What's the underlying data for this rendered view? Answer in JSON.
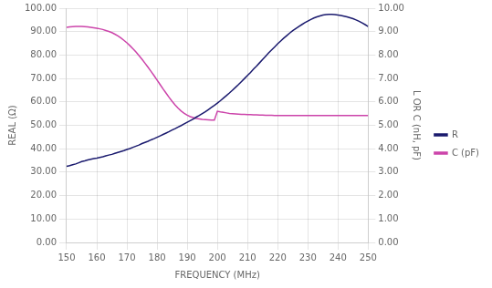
{
  "chart_data": {
    "type": "line",
    "xlabel": "FREQUENCY (MHz)",
    "ylabel": "REAL (Ω)",
    "y2label": "L OR C (nH, pF)",
    "x": [
      150,
      151,
      152,
      153,
      154,
      155,
      156,
      157,
      158,
      159,
      160,
      161,
      162,
      163,
      164,
      165,
      166,
      167,
      168,
      169,
      170,
      171,
      172,
      173,
      174,
      175,
      176,
      177,
      178,
      179,
      180,
      181,
      182,
      183,
      184,
      185,
      186,
      187,
      188,
      189,
      190,
      191,
      192,
      193,
      194,
      195,
      196,
      197,
      198,
      199,
      200,
      201,
      202,
      203,
      204,
      205,
      206,
      207,
      208,
      209,
      210,
      211,
      212,
      213,
      214,
      215,
      216,
      217,
      218,
      219,
      220,
      221,
      222,
      223,
      224,
      225,
      226,
      227,
      228,
      229,
      230,
      231,
      232,
      233,
      234,
      235,
      236,
      237,
      238,
      239,
      240,
      241,
      242,
      243,
      244,
      245,
      246,
      247,
      248,
      249,
      250
    ],
    "series": [
      {
        "name": "R",
        "color": "#1a1a6e",
        "axis": "y",
        "values": [
          32.5,
          32.8,
          33.2,
          33.5,
          34.0,
          34.5,
          34.8,
          35.2,
          35.5,
          35.8,
          36.0,
          36.3,
          36.6,
          37.0,
          37.3,
          37.6,
          38.0,
          38.4,
          38.8,
          39.2,
          39.7,
          40.1,
          40.6,
          41.1,
          41.6,
          42.2,
          42.7,
          43.2,
          43.8,
          44.3,
          44.9,
          45.5,
          46.1,
          46.7,
          47.3,
          48.0,
          48.6,
          49.3,
          49.9,
          50.6,
          51.3,
          52.0,
          52.7,
          53.5,
          54.2,
          55.0,
          55.8,
          56.7,
          57.6,
          58.5,
          59.5,
          60.5,
          61.6,
          62.7,
          63.8,
          65.0,
          66.2,
          67.4,
          68.7,
          70.0,
          71.3,
          72.6,
          74.0,
          75.3,
          76.7,
          78.1,
          79.5,
          80.9,
          82.2,
          83.5,
          84.8,
          86.0,
          87.2,
          88.3,
          89.4,
          90.4,
          91.3,
          92.2,
          93.0,
          93.8,
          94.5,
          95.2,
          95.8,
          96.3,
          96.7,
          97.1,
          97.3,
          97.4,
          97.4,
          97.3,
          97.1,
          96.9,
          96.6,
          96.3,
          95.9,
          95.5,
          95.0,
          94.4,
          93.7,
          93.0,
          92.2
        ]
      },
      {
        "name": "C (pF)",
        "color": "#cc44aa",
        "axis": "y2",
        "values": [
          9.18,
          9.2,
          9.21,
          9.22,
          9.22,
          9.22,
          9.21,
          9.2,
          9.18,
          9.16,
          9.14,
          9.12,
          9.09,
          9.05,
          9.01,
          8.96,
          8.89,
          8.82,
          8.73,
          8.63,
          8.52,
          8.4,
          8.27,
          8.13,
          7.98,
          7.82,
          7.65,
          7.48,
          7.3,
          7.12,
          6.93,
          6.74,
          6.55,
          6.37,
          6.19,
          6.02,
          5.87,
          5.73,
          5.61,
          5.51,
          5.43,
          5.37,
          5.33,
          5.29,
          5.27,
          5.25,
          5.24,
          5.23,
          5.22,
          5.22,
          5.6,
          5.57,
          5.55,
          5.53,
          5.51,
          5.5,
          5.49,
          5.48,
          5.47,
          5.47,
          5.46,
          5.46,
          5.45,
          5.45,
          5.44,
          5.44,
          5.43,
          5.43,
          5.43,
          5.42,
          5.42,
          5.42,
          5.42,
          5.42,
          5.42,
          5.42,
          5.42,
          5.42,
          5.42,
          5.42,
          5.42,
          5.42,
          5.42,
          5.42,
          5.42,
          5.42,
          5.42,
          5.42,
          5.42,
          5.42,
          5.42,
          5.42,
          5.42,
          5.42,
          5.42,
          5.42,
          5.42,
          5.42,
          5.42,
          5.42,
          5.42
        ]
      }
    ],
    "xlim": [
      150,
      250
    ],
    "xticks": [
      150,
      160,
      170,
      180,
      190,
      200,
      210,
      220,
      230,
      240,
      250
    ],
    "ylim": [
      0,
      100
    ],
    "yticks": [
      {
        "value": 0,
        "label": "0.00"
      },
      {
        "value": 10,
        "label": "10.00"
      },
      {
        "value": 20,
        "label": "20.00"
      },
      {
        "value": 30,
        "label": "30.00"
      },
      {
        "value": 40,
        "label": "40.00"
      },
      {
        "value": 50,
        "label": "50.00"
      },
      {
        "value": 60,
        "label": "60.00"
      },
      {
        "value": 70,
        "label": "70.00"
      },
      {
        "value": 80,
        "label": "80.00"
      },
      {
        "value": 90,
        "label": "90.00"
      },
      {
        "value": 100,
        "label": "100.00"
      }
    ],
    "y2lim": [
      0,
      10
    ],
    "y2ticks": [
      {
        "value": 0,
        "label": "0.00"
      },
      {
        "value": 1,
        "label": "1.00"
      },
      {
        "value": 2,
        "label": "2.00"
      },
      {
        "value": 3,
        "label": "3.00"
      },
      {
        "value": 4,
        "label": "4.00"
      },
      {
        "value": 5,
        "label": "5.00"
      },
      {
        "value": 6,
        "label": "6.00"
      },
      {
        "value": 7,
        "label": "7.00"
      },
      {
        "value": 8,
        "label": "8.00"
      },
      {
        "value": 9,
        "label": "9.00"
      },
      {
        "value": 10,
        "label": "10.00"
      }
    ],
    "grid": true,
    "legend": "right"
  }
}
